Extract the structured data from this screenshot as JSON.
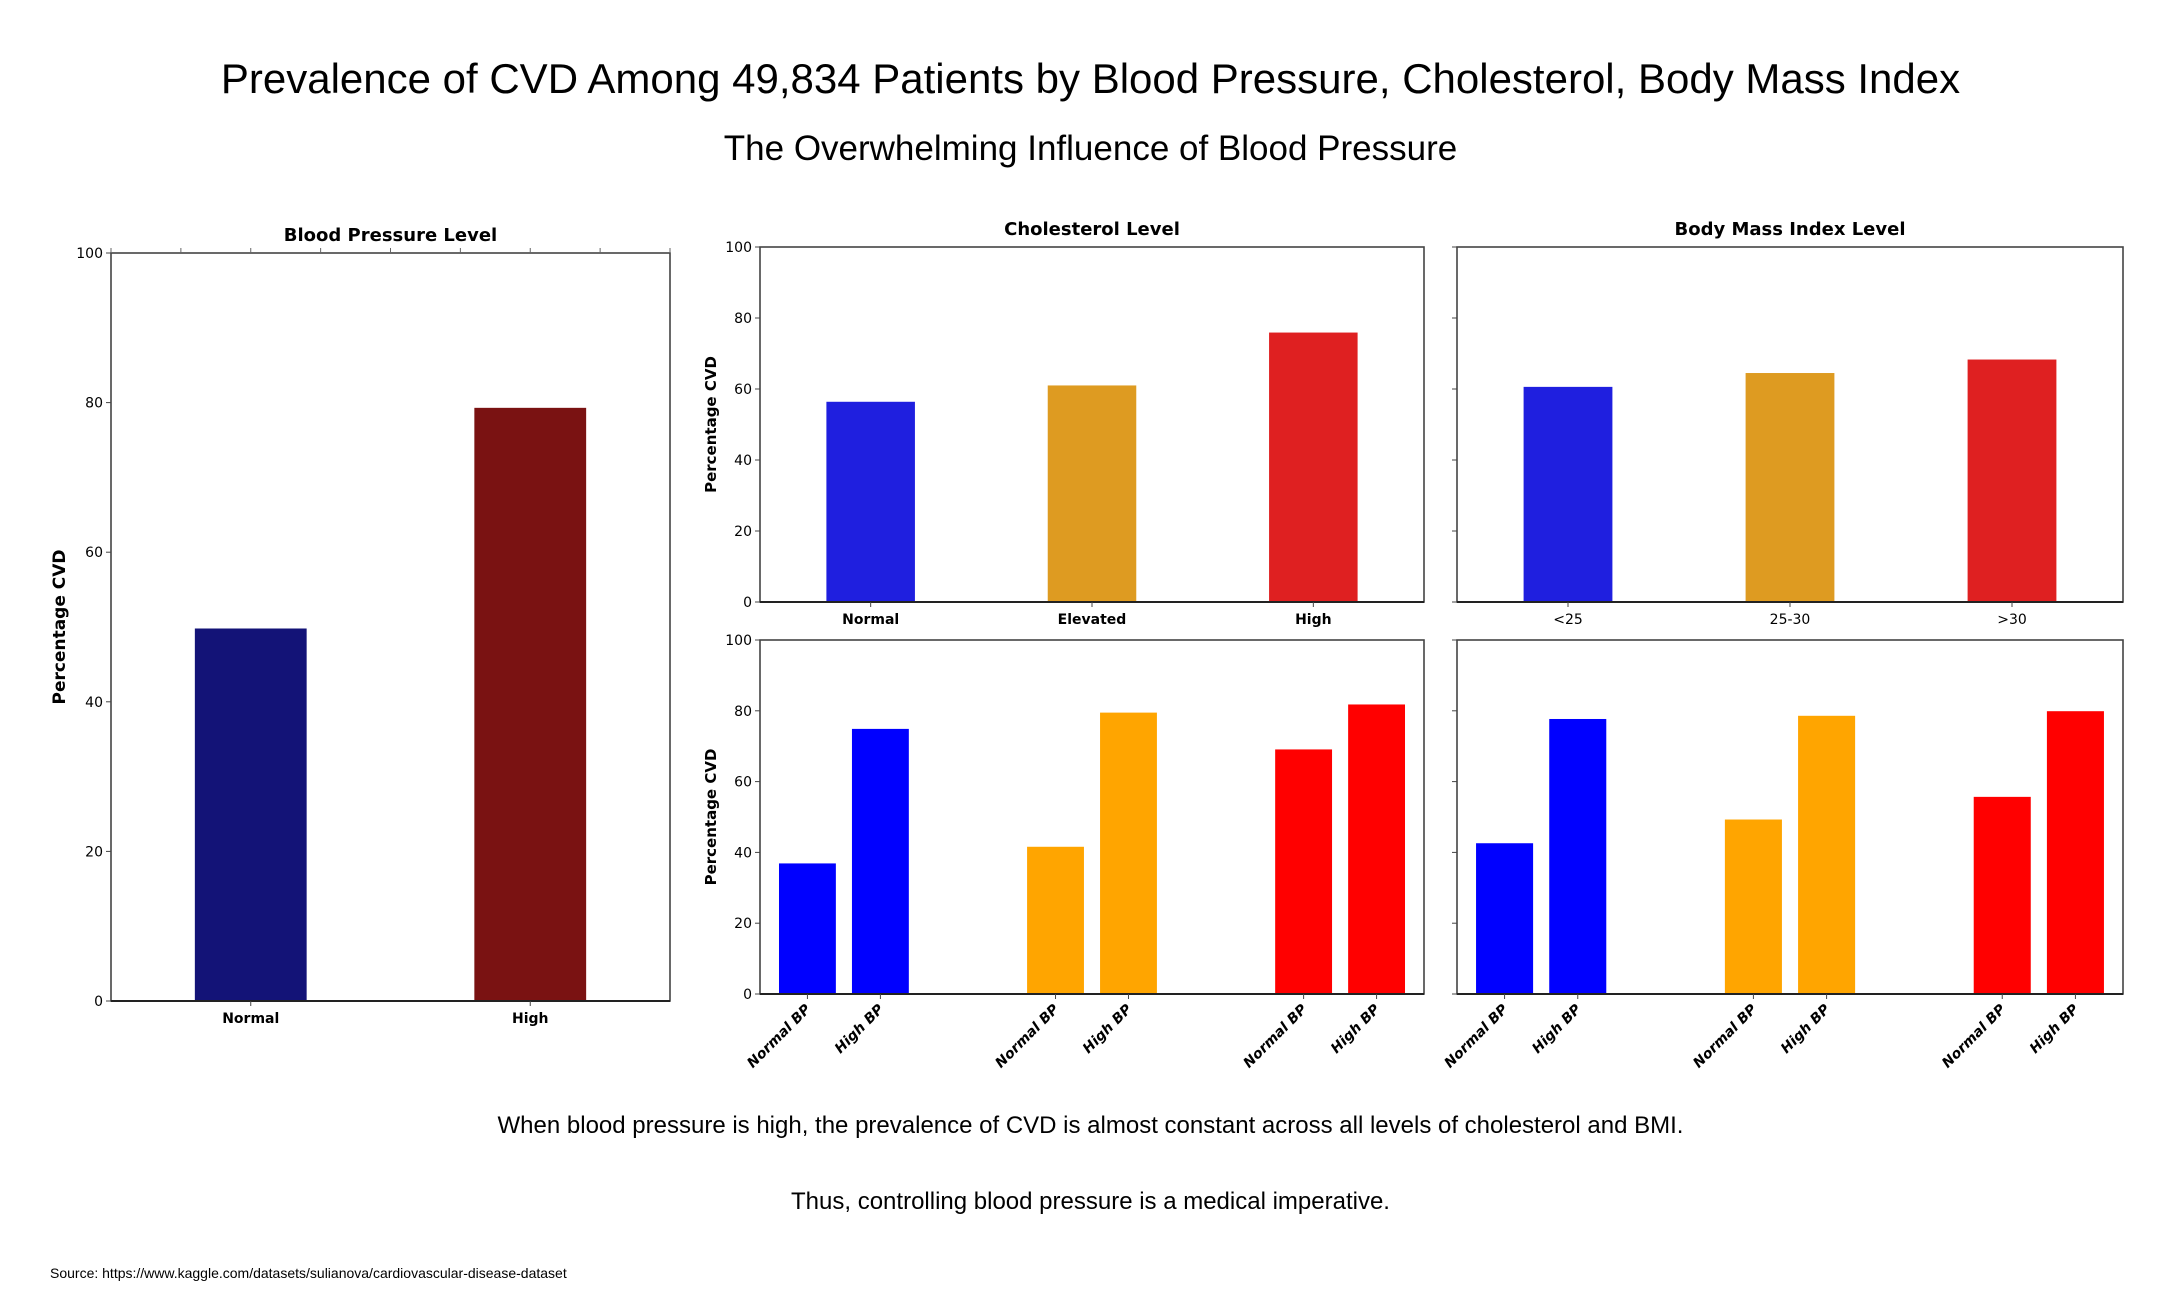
{
  "header": {
    "title": "Prevalence of CVD Among 49,834 Patients by Blood Pressure, Cholesterol, Body Mass Index",
    "subtitle": "The Overwhelming Influence of Blood Pressure"
  },
  "footer": {
    "note_1": "When blood pressure is high, the prevalence of CVD is almost constant across all levels of cholesterol and BMI.",
    "note_2": "Thus, controlling blood pressure is a medical imperative.",
    "source": "Source: https://www.kaggle.com/datasets/sulianova/cardiovascular-disease-dataset"
  },
  "chart_data": [
    {
      "id": "bp",
      "type": "bar",
      "title": "Blood Pressure Level",
      "xlabel": "",
      "ylabel": "Percentage CVD",
      "ylim": [
        0,
        100
      ],
      "yticks": [
        0,
        20,
        40,
        60,
        80,
        100
      ],
      "categories": [
        "Normal",
        "High"
      ],
      "values": [
        49.8,
        79.3
      ],
      "colors": [
        "#131377",
        "#7a1212"
      ],
      "xtick_bold": true,
      "grid": false
    },
    {
      "id": "chol",
      "type": "bar",
      "title": "Cholesterol Level",
      "xlabel": "",
      "ylabel": "Percentage CVD",
      "ylim": [
        0,
        100
      ],
      "yticks": [
        0,
        20,
        40,
        60,
        80,
        100
      ],
      "categories": [
        "Normal",
        "Elevated",
        "High"
      ],
      "values": [
        56.4,
        61.0,
        75.9
      ],
      "colors": [
        "#1f1fdf",
        "#de9b21",
        "#df2021"
      ],
      "xtick_bold": true,
      "grid": false
    },
    {
      "id": "bmi",
      "type": "bar",
      "title": "Body Mass Index Level",
      "xlabel": "",
      "ylabel": "",
      "ylim": [
        0,
        100
      ],
      "yticks": [
        0,
        20,
        40,
        60,
        80,
        100
      ],
      "show_ytick_labels": false,
      "categories": [
        "<25",
        "25-30",
        ">30"
      ],
      "values": [
        60.6,
        64.5,
        68.3
      ],
      "colors": [
        "#1f1fdf",
        "#de9b21",
        "#df2021"
      ],
      "xtick_bold": false,
      "grid": false
    },
    {
      "id": "chol_bp",
      "type": "bar",
      "title": "",
      "xlabel": "",
      "ylabel": "Percentage CVD",
      "ylim": [
        0,
        100
      ],
      "yticks": [
        0,
        20,
        40,
        60,
        80,
        100
      ],
      "groups": [
        "Normal",
        "Elevated",
        "High"
      ],
      "categories": [
        "Normal BP",
        "High BP",
        "Normal BP",
        "High BP",
        "Normal BP",
        "High BP"
      ],
      "series": [
        {
          "name": "Normal BP",
          "values": [
            37.1,
            41.8,
            69.3
          ]
        },
        {
          "name": "High BP",
          "values": [
            75.1,
            79.7,
            82.0
          ]
        }
      ],
      "group_colors": [
        "#0000ff",
        "#ffa500",
        "#ff0000"
      ],
      "xtick_rotation": 45,
      "grid": false
    },
    {
      "id": "bmi_bp",
      "type": "bar",
      "title": "",
      "xlabel": "",
      "ylabel": "",
      "ylim": [
        0,
        100
      ],
      "yticks": [
        0,
        20,
        40,
        60,
        80,
        100
      ],
      "show_ytick_labels": false,
      "groups": [
        "<25",
        "25-30",
        ">30"
      ],
      "categories": [
        "Normal BP",
        "High BP",
        "Normal BP",
        "High BP",
        "Normal BP",
        "High BP"
      ],
      "series": [
        {
          "name": "Normal BP",
          "values": [
            42.8,
            49.5,
            55.9
          ]
        },
        {
          "name": "High BP",
          "values": [
            77.9,
            78.8,
            80.1
          ]
        }
      ],
      "group_colors": [
        "#0000ff",
        "#ffa500",
        "#ff0000"
      ],
      "xtick_rotation": 45,
      "grid": false
    }
  ]
}
